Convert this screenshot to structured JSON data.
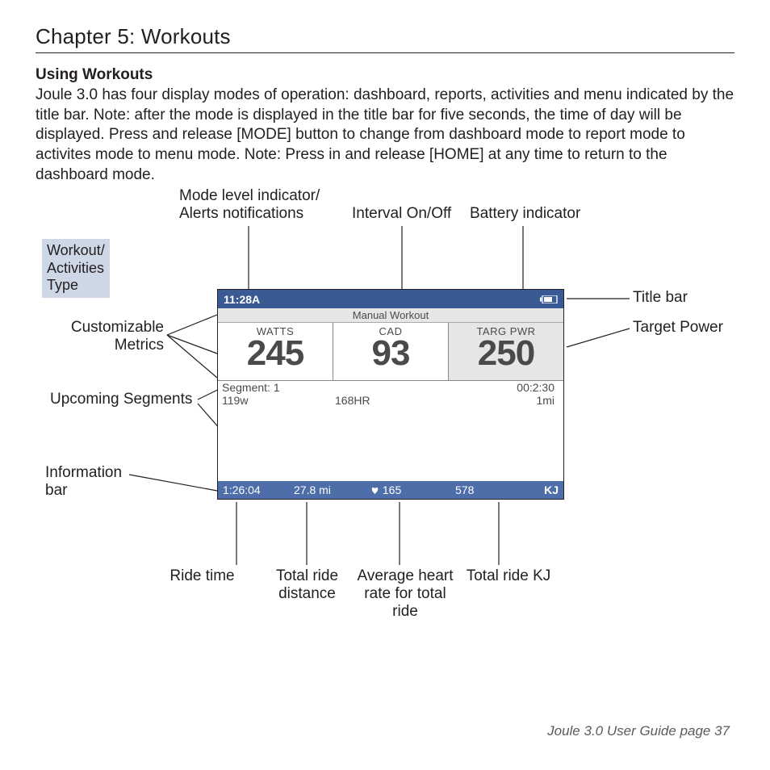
{
  "chapter_title": "Chapter 5: Workouts",
  "subhead": "Using Workouts",
  "body": "Joule 3.0  has four display modes of operation: dashboard, reports, activities and menu indicated by the title bar. Note: after the mode is displayed in the title bar for five seconds, the time of day will be displayed.  Press and release [MODE]  button to change from dashboard mode to report mode to activites mode to menu mode.  Note: Press in and release [HOME]  at any time to return to the dashboard mode.",
  "device": {
    "time": "11:28A",
    "mode": "Manual Workout",
    "metrics": [
      {
        "label": "WATTS",
        "value": "245"
      },
      {
        "label": "CAD",
        "value": "93"
      },
      {
        "label": "TARG PWR",
        "value": "250"
      }
    ],
    "segment_label": "Segment:  1",
    "segment_duration": "00:2:30",
    "seg_watts": "119w",
    "seg_hr": "168HR",
    "seg_dist": "1mi",
    "info": {
      "ride_time": "1:26:04",
      "distance": "27.8 mi",
      "hr": "165",
      "kj_num": "578",
      "kj_label": "KJ"
    }
  },
  "callouts": {
    "workout_type": "Workout/\nActivities\nType",
    "mode_alerts": "Mode level indicator/\nAlerts notifications",
    "interval": "Interval On/Off",
    "battery": "Battery indicator",
    "title_bar": "Title bar",
    "target_power": "Target Power",
    "custom_metrics": "Customizable\nMetrics",
    "upcoming_segments": "Upcoming Segments",
    "info_bar": "Information\nbar",
    "ride_time": "Ride time",
    "total_distance": "Total ride\ndistance",
    "avg_hr": "Average heart\nrate for total\nride",
    "total_kj": "Total ride KJ"
  },
  "footer": "Joule 3.0 User Guide page 37"
}
